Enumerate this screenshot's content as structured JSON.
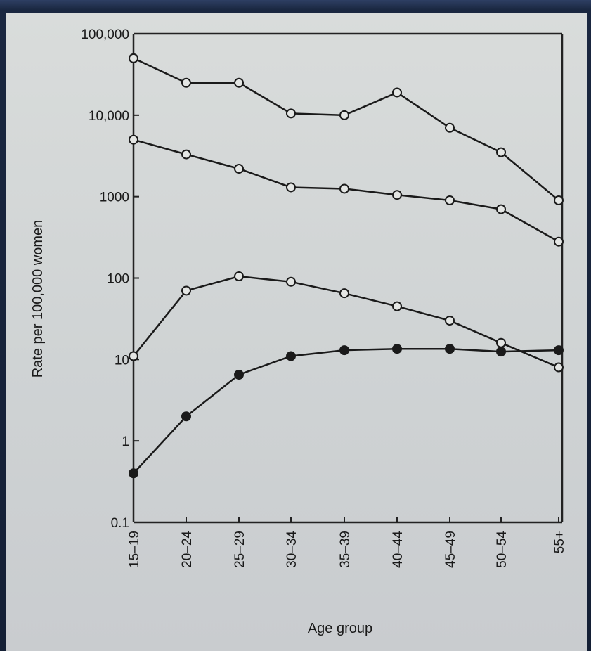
{
  "chart_data": {
    "type": "line",
    "xlabel": "Age group",
    "ylabel": "Rate per 100,000 women",
    "yscale": "log",
    "ylim": [
      0.1,
      100000
    ],
    "grid": false,
    "categories": [
      "15–19",
      "20–24",
      "25–29",
      "30–34",
      "35–39",
      "40–44",
      "45–49",
      "50–54",
      "55+"
    ],
    "y_tick_labels": [
      "0.1",
      "1",
      "10",
      "100",
      "1000",
      "10,000",
      "100,000"
    ],
    "y_tick_values": [
      0.1,
      1,
      10,
      100,
      1000,
      10000,
      100000
    ],
    "series": [
      {
        "marker": "open-circle",
        "values": [
          50000,
          25000,
          25000,
          10500,
          10000,
          19000,
          7000,
          3500,
          900
        ]
      },
      {
        "marker": "open-circle",
        "values": [
          5000,
          3300,
          2200,
          1300,
          1250,
          1050,
          900,
          700,
          280
        ]
      },
      {
        "marker": "open-circle",
        "values": [
          11,
          70,
          105,
          90,
          65,
          45,
          30,
          16,
          8
        ]
      },
      {
        "marker": "filled-circle",
        "values": [
          0.4,
          2,
          6.5,
          11,
          13,
          13.5,
          13.5,
          12.5,
          13
        ]
      }
    ]
  }
}
